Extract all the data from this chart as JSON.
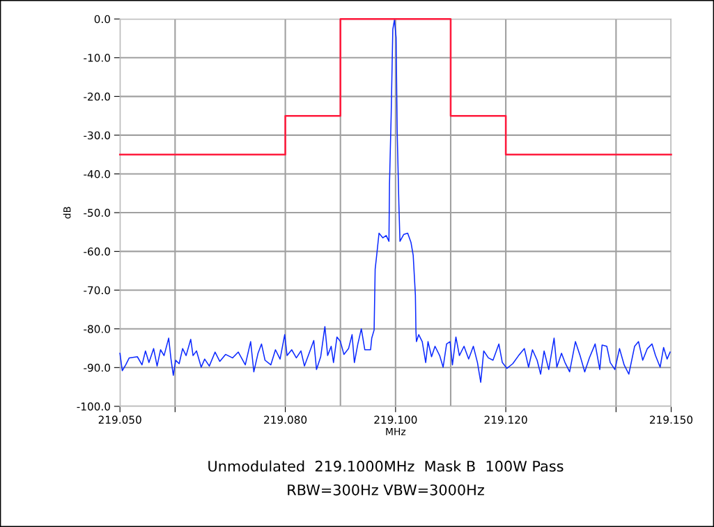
{
  "chart_data": {
    "type": "line",
    "title": "Unmodulated  219.1000MHz  Mask B  100W Pass",
    "subtitle": "RBW=300Hz VBW=3000Hz",
    "xlabel": "MHz",
    "ylabel": "dB",
    "xlim": [
      219.05,
      219.15
    ],
    "xticks": [
      {
        "value": 219.05,
        "label": "219.050"
      },
      {
        "value": 219.06,
        "label": null
      },
      {
        "value": 219.08,
        "label": "219.080"
      },
      {
        "value": 219.1,
        "label": "219.100"
      },
      {
        "value": 219.12,
        "label": "219.120"
      },
      {
        "value": 219.14,
        "label": null
      },
      {
        "value": 219.15,
        "label": "219.150"
      }
    ],
    "ylim": [
      -100,
      0
    ],
    "yticks": [
      {
        "value": 0,
        "label": "0.0"
      },
      {
        "value": -10,
        "label": "-10.0"
      },
      {
        "value": -20,
        "label": "-20.0"
      },
      {
        "value": -30,
        "label": "-30.0"
      },
      {
        "value": -40,
        "label": "-40.0"
      },
      {
        "value": -50,
        "label": "-50.0"
      },
      {
        "value": -60,
        "label": "-60.0"
      },
      {
        "value": -70,
        "label": "-70.0"
      },
      {
        "value": -80,
        "label": "-80.0"
      },
      {
        "value": -90,
        "label": "-90.0"
      },
      {
        "value": -100,
        "label": "-100.0"
      }
    ],
    "grid": true,
    "ref_lines": [
      {
        "axis": "x",
        "value": 219.09,
        "color": "#a0a0a0"
      },
      {
        "axis": "x",
        "value": 219.11,
        "color": "#a0a0a0"
      }
    ],
    "series": [
      {
        "color": "#0a28ff",
        "x": [
          219.05,
          219.05042,
          219.05105,
          219.05168,
          219.05316,
          219.054,
          219.05463,
          219.05526,
          219.05611,
          219.05674,
          219.05737,
          219.058,
          219.05884,
          219.05926,
          219.05968,
          219.06011,
          219.06074,
          219.06137,
          219.062,
          219.06284,
          219.06326,
          219.06389,
          219.06474,
          219.06537,
          219.06621,
          219.06726,
          219.06811,
          219.06916,
          219.07042,
          219.07147,
          219.07274,
          219.07371,
          219.07429,
          219.07505,
          219.07568,
          219.07632,
          219.07737,
          219.07821,
          219.07905,
          219.07989,
          219.08032,
          219.08116,
          219.082,
          219.08284,
          219.08347,
          219.08432,
          219.08516,
          219.08566,
          219.08642,
          219.08718,
          219.08768,
          219.08832,
          219.08874,
          219.08937,
          219.09,
          219.09063,
          219.09147,
          219.09211,
          219.09253,
          219.09316,
          219.09379,
          219.09442,
          219.09547,
          219.09568,
          219.09611,
          219.0963,
          219.0966,
          219.097,
          219.0977,
          219.0983,
          219.0988,
          219.0989,
          219.0992,
          219.0995,
          219.0998,
          219.1001,
          219.1003,
          219.1006,
          219.1008,
          219.1015,
          219.1022,
          219.1028,
          219.1032,
          219.1036,
          219.1037,
          219.10379,
          219.10421,
          219.10484,
          219.10547,
          219.10589,
          219.10653,
          219.10716,
          219.108,
          219.10863,
          219.10926,
          219.10989,
          219.11032,
          219.11095,
          219.11158,
          219.11242,
          219.11326,
          219.11411,
          219.11486,
          219.11545,
          219.116,
          219.11684,
          219.11768,
          219.11874,
          219.11937,
          219.12021,
          219.12126,
          219.12232,
          219.12337,
          219.12413,
          219.12484,
          219.12568,
          219.12632,
          219.12695,
          219.12779,
          219.12876,
          219.12926,
          219.13011,
          219.13074,
          219.13158,
          219.13263,
          219.13347,
          219.13432,
          219.13516,
          219.13621,
          219.13705,
          219.13747,
          219.13832,
          219.13895,
          219.13979,
          219.14063,
          219.14147,
          219.14232,
          219.14337,
          219.14408,
          219.14484,
          219.14568,
          219.14653,
          219.14716,
          219.148,
          219.14863,
          219.14926,
          219.14981
        ],
        "values": [
          -86.3,
          -90.8,
          -89.3,
          -87.5,
          -87.2,
          -89.3,
          -85.7,
          -88.7,
          -85.1,
          -89.6,
          -85.4,
          -86.9,
          -82.4,
          -87.8,
          -92.0,
          -88.1,
          -89.0,
          -85.1,
          -86.9,
          -82.7,
          -86.9,
          -85.7,
          -89.9,
          -87.8,
          -89.6,
          -86.0,
          -88.4,
          -86.6,
          -87.5,
          -86.0,
          -89.3,
          -83.3,
          -91.1,
          -86.3,
          -83.9,
          -88.1,
          -89.3,
          -85.4,
          -87.8,
          -81.5,
          -86.9,
          -85.4,
          -87.5,
          -85.7,
          -89.6,
          -86.3,
          -83.0,
          -90.5,
          -87.2,
          -79.4,
          -86.9,
          -84.5,
          -88.7,
          -82.1,
          -83.3,
          -86.6,
          -85.1,
          -81.5,
          -88.7,
          -83.9,
          -80.0,
          -85.4,
          -85.4,
          -82.4,
          -80.3,
          -64.6,
          -60.7,
          -55.3,
          -56.5,
          -55.9,
          -57.4,
          -42.6,
          -25.1,
          -2.7,
          -0.2,
          -4.8,
          -29.3,
          -47.7,
          -57.4,
          -55.6,
          -55.3,
          -57.7,
          -61.0,
          -71.3,
          -80.6,
          -83.3,
          -81.5,
          -83.3,
          -88.7,
          -83.3,
          -87.2,
          -84.5,
          -86.9,
          -89.9,
          -83.9,
          -83.3,
          -89.3,
          -82.1,
          -86.9,
          -84.5,
          -87.8,
          -84.5,
          -88.7,
          -93.8,
          -85.7,
          -87.5,
          -88.1,
          -83.9,
          -88.7,
          -90.2,
          -89.0,
          -86.9,
          -85.1,
          -89.9,
          -85.4,
          -88.1,
          -91.7,
          -85.7,
          -90.5,
          -82.4,
          -89.9,
          -86.3,
          -88.7,
          -91.1,
          -83.3,
          -86.9,
          -91.1,
          -87.5,
          -83.9,
          -90.5,
          -84.2,
          -84.5,
          -88.7,
          -90.5,
          -85.1,
          -89.3,
          -91.7,
          -84.5,
          -83.3,
          -88.1,
          -85.1,
          -83.9,
          -86.9,
          -89.9,
          -84.8,
          -87.8,
          -86.0
        ]
      },
      {
        "color": "#ff1a3c",
        "x": [
          219.05,
          219.08,
          219.08,
          219.09,
          219.09,
          219.11,
          219.11,
          219.12,
          219.12,
          219.15
        ],
        "values": [
          -35,
          -35,
          -25,
          -25,
          0,
          0,
          -25,
          -25,
          -35,
          -35
        ]
      }
    ]
  }
}
